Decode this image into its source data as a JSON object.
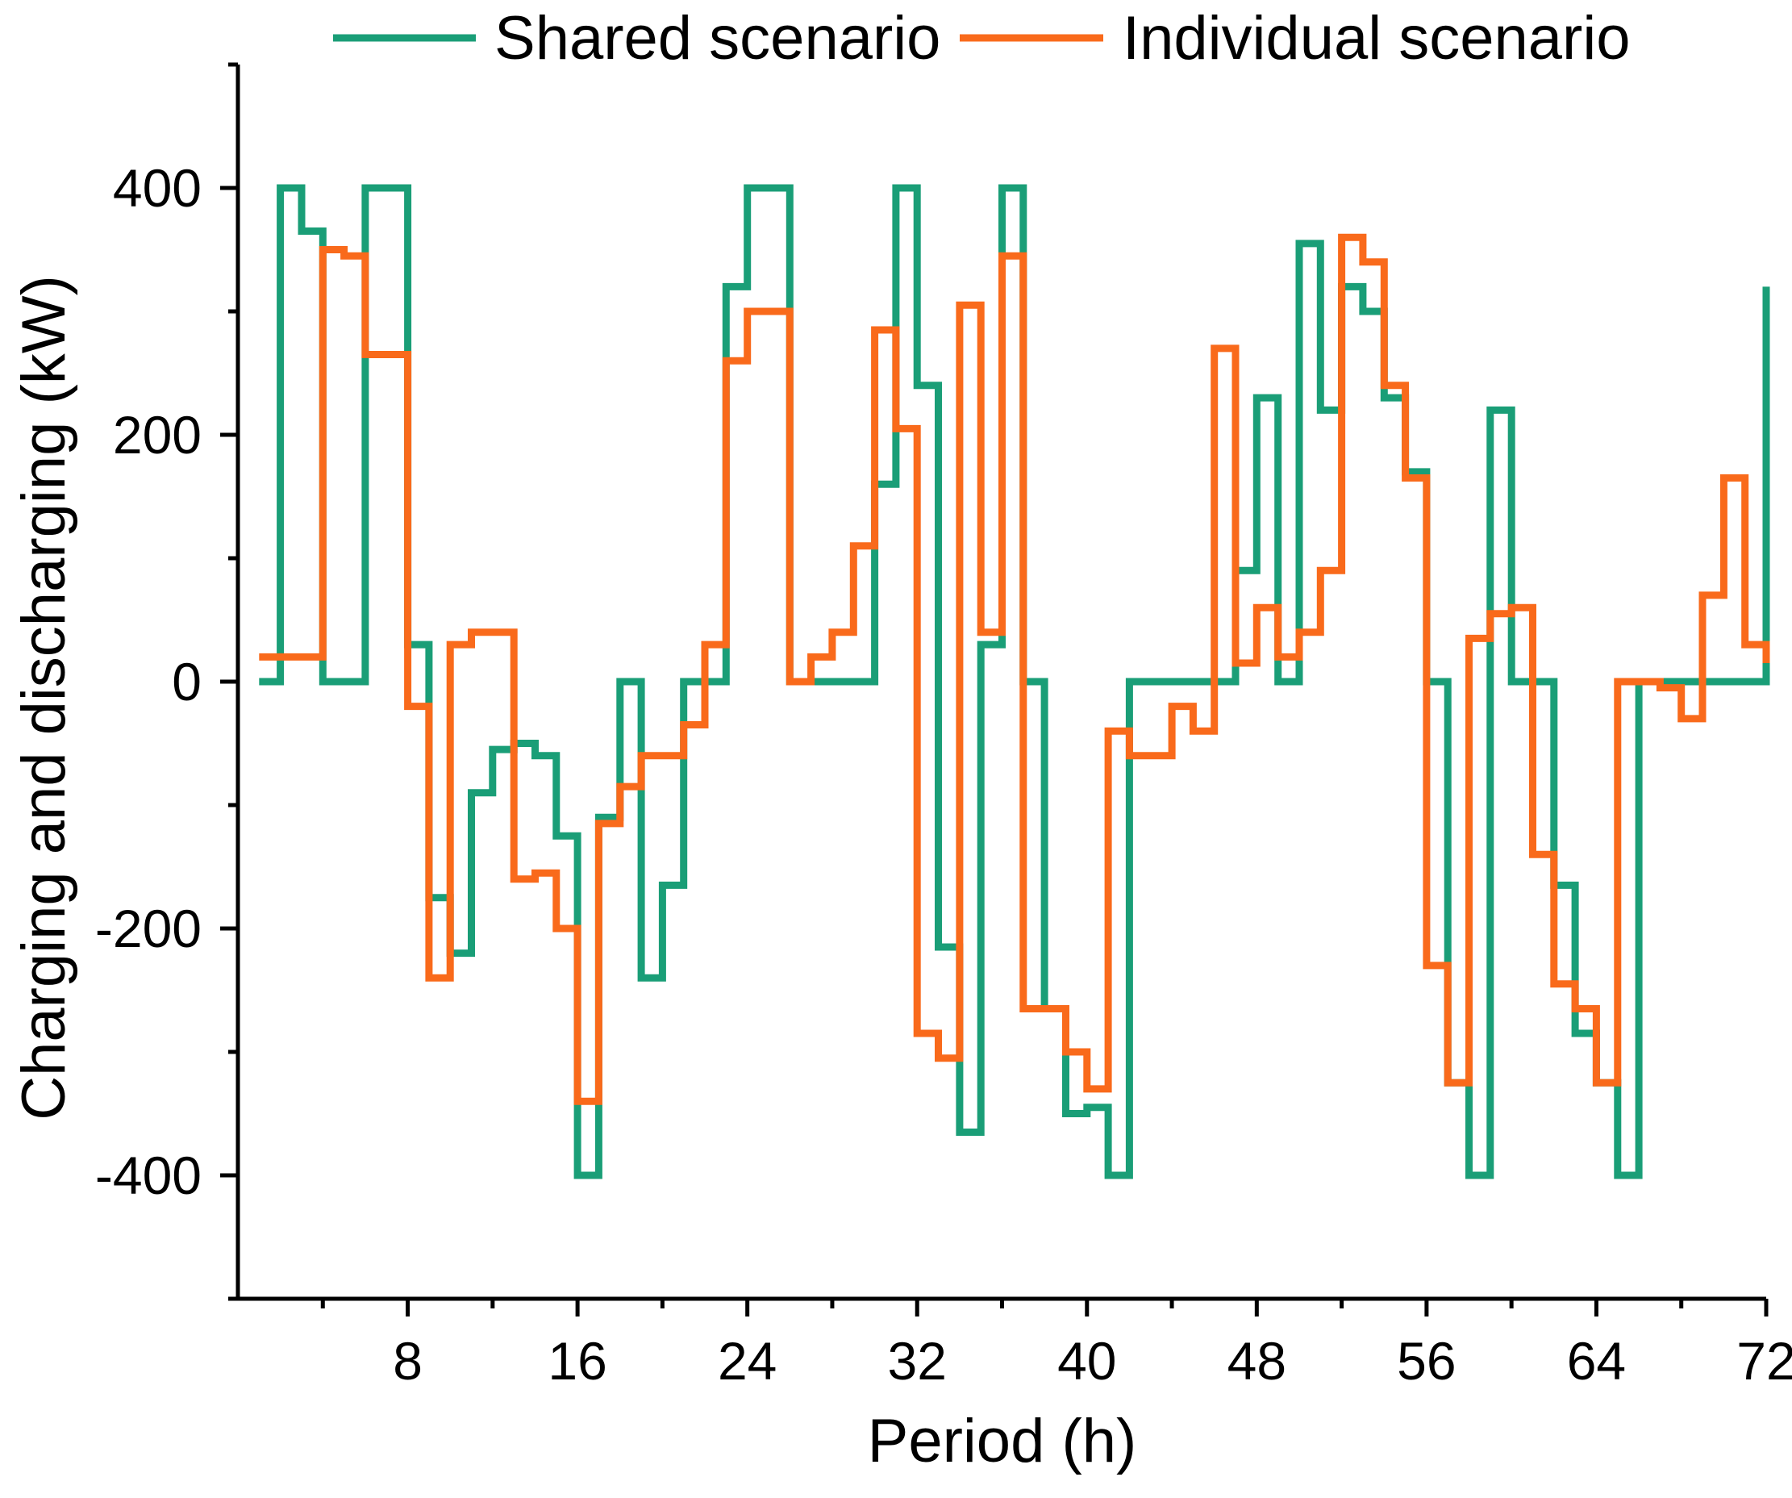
{
  "chart_data": {
    "type": "line",
    "step": true,
    "title": "",
    "xlabel": "Period (h)",
    "ylabel": "Charging and discharging (kW)",
    "xlim": [
      0,
      72
    ],
    "ylim": [
      -500,
      500
    ],
    "xticks": [
      8,
      16,
      24,
      32,
      40,
      48,
      56,
      64,
      72
    ],
    "yticks": [
      -400,
      -200,
      0,
      200,
      400
    ],
    "x": [
      1,
      2,
      3,
      4,
      5,
      6,
      7,
      8,
      9,
      10,
      11,
      12,
      13,
      14,
      15,
      16,
      17,
      18,
      19,
      20,
      21,
      22,
      23,
      24,
      25,
      26,
      27,
      28,
      29,
      30,
      31,
      32,
      33,
      34,
      35,
      36,
      37,
      38,
      39,
      40,
      41,
      42,
      43,
      44,
      45,
      46,
      47,
      48,
      49,
      50,
      51,
      52,
      53,
      54,
      55,
      56,
      57,
      58,
      59,
      60,
      61,
      62,
      63,
      64,
      65,
      66,
      67,
      68,
      69,
      70,
      71,
      72
    ],
    "series": [
      {
        "name": "Shared scenario",
        "color": "#1a9e77",
        "values": [
          0,
          400,
          365,
          0,
          0,
          400,
          400,
          30,
          -175,
          -220,
          -90,
          -55,
          -50,
          -60,
          -125,
          -400,
          -110,
          0,
          -240,
          -165,
          0,
          0,
          320,
          400,
          400,
          0,
          0,
          0,
          0,
          160,
          400,
          240,
          -215,
          -365,
          30,
          400,
          0,
          -265,
          -350,
          -345,
          -400,
          0,
          0,
          0,
          0,
          0,
          90,
          230,
          0,
          355,
          220,
          320,
          300,
          230,
          170,
          0,
          -325,
          -400,
          220,
          0,
          0,
          -165,
          -285,
          -325,
          -400,
          0,
          0,
          0,
          0,
          0,
          0,
          320
        ]
      },
      {
        "name": "Individual scenario",
        "color": "#f96a1b",
        "values": [
          20,
          20,
          20,
          350,
          345,
          265,
          265,
          -20,
          -240,
          30,
          40,
          40,
          -160,
          -155,
          -200,
          -340,
          -115,
          -85,
          -60,
          -60,
          -35,
          30,
          260,
          300,
          300,
          0,
          20,
          40,
          110,
          285,
          205,
          -285,
          -305,
          305,
          40,
          345,
          -265,
          -265,
          -300,
          -330,
          -40,
          -60,
          -60,
          -20,
          -40,
          270,
          15,
          60,
          20,
          40,
          90,
          360,
          340,
          240,
          165,
          -230,
          -325,
          35,
          55,
          60,
          -140,
          -245,
          -265,
          -325,
          0,
          0,
          -5,
          -30,
          70,
          165,
          30,
          15
        ]
      }
    ],
    "legend": {
      "position": "top",
      "entries": [
        "Shared scenario",
        "Individual scenario"
      ]
    }
  }
}
